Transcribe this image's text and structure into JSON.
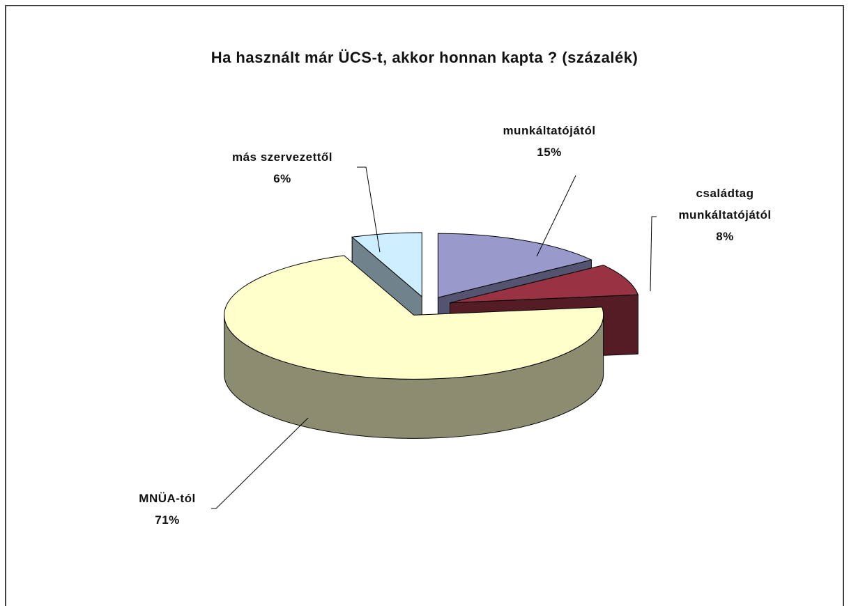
{
  "chart_data": {
    "type": "pie",
    "title": "Ha használt már ÜCS-t, akkor honnan kapta ? (százalék)",
    "categories": [
      "munkáltatójától",
      "családtag munkáltatójától",
      "MNÜA-tól",
      "más szervezettől"
    ],
    "values": [
      15,
      8,
      71,
      6
    ],
    "value_labels": [
      "15%",
      "8%",
      "71%",
      "6%"
    ],
    "colors": [
      "#9999cc",
      "#993344",
      "#ffffcc",
      "#cceeff"
    ]
  }
}
